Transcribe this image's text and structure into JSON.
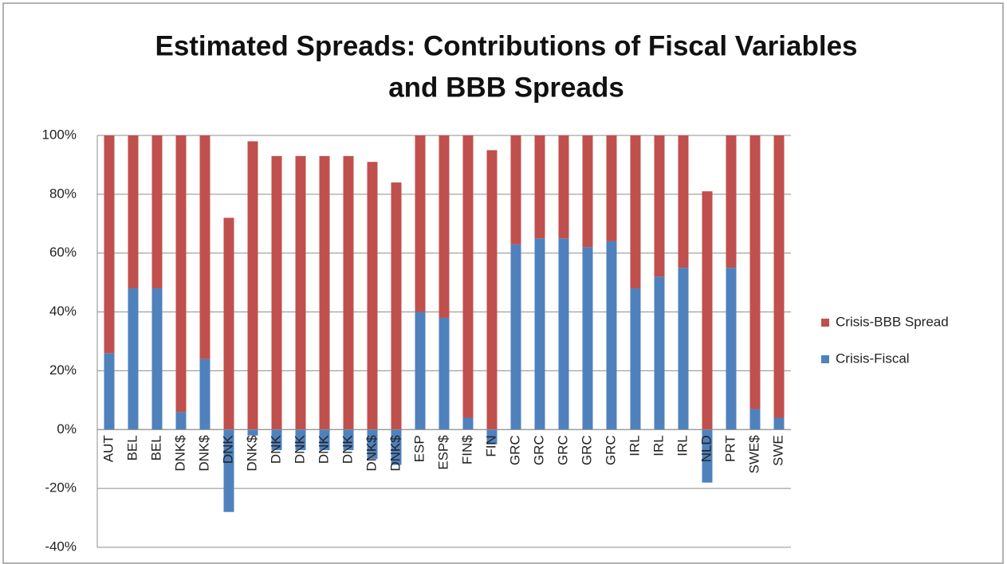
{
  "chart_data": {
    "type": "stacked_bar",
    "title": [
      "Estimated Spreads: Contributions of Fiscal Variables",
      "and BBB Spreads"
    ],
    "categories": [
      "AUT",
      "BEL",
      "BEL",
      "DNK$",
      "DNK$",
      "DNK",
      "DNK$",
      "DNK",
      "DNK",
      "DNK",
      "DNK",
      "DNK$",
      "DNK$",
      "ESP",
      "ESP$",
      "FIN$",
      "FIN",
      "GRC",
      "GRC",
      "GRC",
      "GRC",
      "GRC",
      "IRL",
      "IRL",
      "IRL",
      "NLD",
      "PRT",
      "SWE$",
      "SWE"
    ],
    "series": [
      {
        "name": "Crisis-Fiscal",
        "color": "#4f81bd",
        "values": [
          26,
          48,
          48,
          6,
          24,
          -28,
          -2,
          -7,
          -7,
          -7,
          -7,
          -10,
          -12,
          40,
          38,
          4,
          -5,
          63,
          65,
          65,
          62,
          64,
          48,
          52,
          55,
          -18,
          55,
          7,
          4
        ]
      },
      {
        "name": "Crisis-BBB Spread",
        "color": "#c0504d",
        "values": [
          74,
          52,
          52,
          94,
          76,
          72,
          98,
          93,
          93,
          93,
          93,
          91,
          84,
          60,
          62,
          96,
          95,
          37,
          35,
          35,
          38,
          36,
          52,
          48,
          45,
          81,
          45,
          93,
          96
        ]
      }
    ],
    "ylim": [
      -40,
      100
    ],
    "yticks": [
      {
        "value": -40,
        "label": "-40%"
      },
      {
        "value": -20,
        "label": "-20%"
      },
      {
        "value": 0,
        "label": "0%"
      },
      {
        "value": 20,
        "label": "20%"
      },
      {
        "value": 40,
        "label": "40%"
      },
      {
        "value": 60,
        "label": "60%"
      },
      {
        "value": 80,
        "label": "80%"
      },
      {
        "value": 100,
        "label": "100%"
      }
    ],
    "grid": true,
    "legend": "right"
  }
}
